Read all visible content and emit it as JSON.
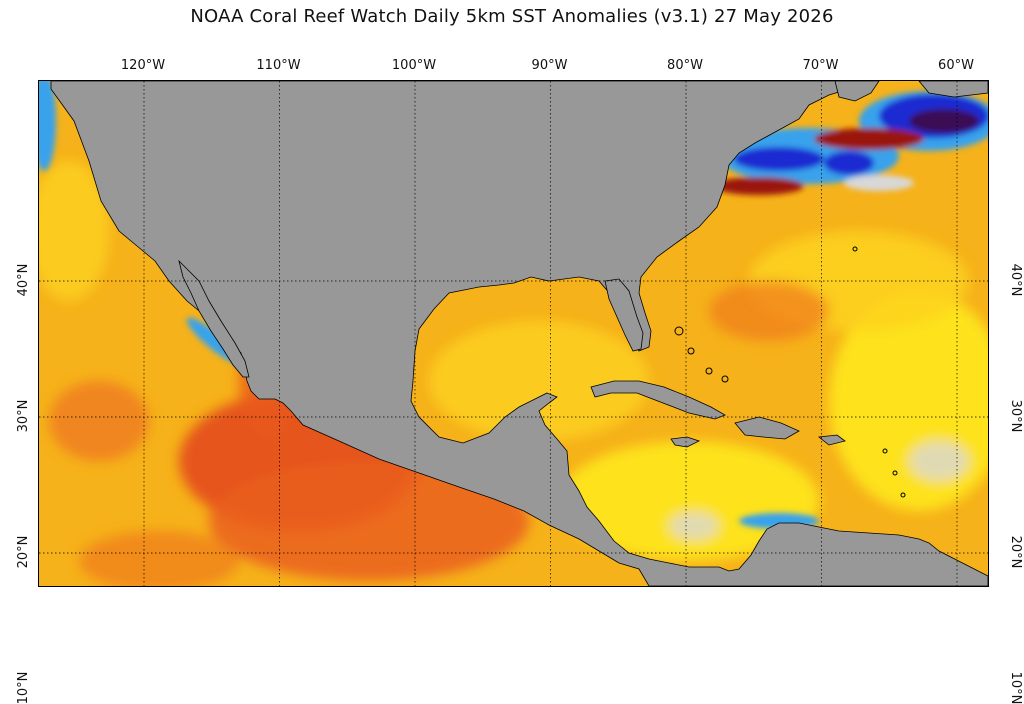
{
  "title": "NOAA Coral Reef Watch Daily 5km SST Anomalies  (v3.1)   27 May 2026",
  "lon_labels": [
    {
      "text": "120°W",
      "lon": -120
    },
    {
      "text": "110°W",
      "lon": -110
    },
    {
      "text": "100°W",
      "lon": -100
    },
    {
      "text": "90°W",
      "lon": -90
    },
    {
      "text": "80°W",
      "lon": -80
    },
    {
      "text": "70°W",
      "lon": -70
    },
    {
      "text": "60°W",
      "lon": -60
    }
  ],
  "lat_labels": [
    {
      "text": "40°N",
      "lat": 40
    },
    {
      "text": "30°N",
      "lat": 30
    },
    {
      "text": "20°N",
      "lat": 20
    },
    {
      "text": "10°N",
      "lat": 10
    }
  ],
  "colors": {
    "land": "#989898",
    "ocean_warm": "#f6b21a",
    "anomaly_hot": "#e5541a",
    "anomaly_very_hot": "#9a1208",
    "anomaly_mild": "#fde21e",
    "anomaly_neutral": "#d8d8d8",
    "anomaly_cool": "#39a2ec",
    "anomaly_cold": "#1a2ad2",
    "anomaly_very_cold": "#3a0a55"
  }
}
